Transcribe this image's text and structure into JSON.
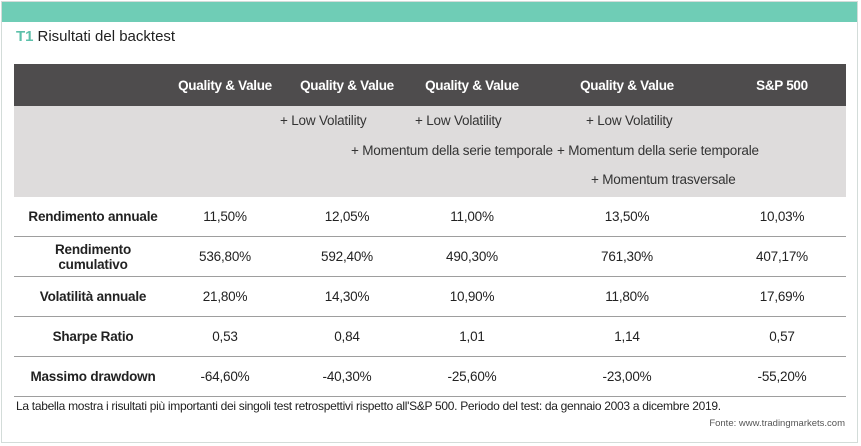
{
  "header": {
    "code": "T1",
    "title": "Risultati del backtest"
  },
  "table": {
    "columns": [
      "Quality & Value",
      "Quality & Value",
      "Quality & Value",
      "Quality & Value",
      "S&P 500"
    ],
    "subtitles": {
      "low_volatility_1": "+ Low Volatility",
      "low_volatility_2": "+ Low Volatility",
      "low_volatility_3": "+ Low Volatility",
      "momentum_serie_1": "+ Momentum della serie temporale",
      "momentum_serie_2": "+ Momentum della serie temporale",
      "momentum_trasversale": "+ Momentum trasversale"
    },
    "rows": [
      {
        "label": "Rendimento annuale",
        "values": [
          "11,50%",
          "12,05%",
          "11,00%",
          "13,50%",
          "10,03%"
        ]
      },
      {
        "label": "Rendimento cumulativo",
        "values": [
          "536,80%",
          "592,40%",
          "490,30%",
          "761,30%",
          "407,17%"
        ]
      },
      {
        "label": "Volatilità annuale",
        "values": [
          "21,80%",
          "14,30%",
          "10,90%",
          "11,80%",
          "17,69%"
        ]
      },
      {
        "label": "Sharpe Ratio",
        "values": [
          "0,53",
          "0,84",
          "1,01",
          "1,14",
          "0,57"
        ]
      },
      {
        "label": "Massimo drawdown",
        "values": [
          "-64,60%",
          "-40,30%",
          "-25,60%",
          "-23,00%",
          "-55,20%"
        ]
      }
    ]
  },
  "footer": {
    "note": "La tabella mostra i risultati più importanti dei singoli test retrospettivi rispetto all'S&P 500. Periodo del test: da gennaio 2003 a dicembre 2019.",
    "source": "Fonte: www.tradingmarkets.com"
  },
  "colors": {
    "accent": "#6fcdb6",
    "header_bg": "#4e4c4d",
    "subheader_bg": "#dedcdc"
  }
}
